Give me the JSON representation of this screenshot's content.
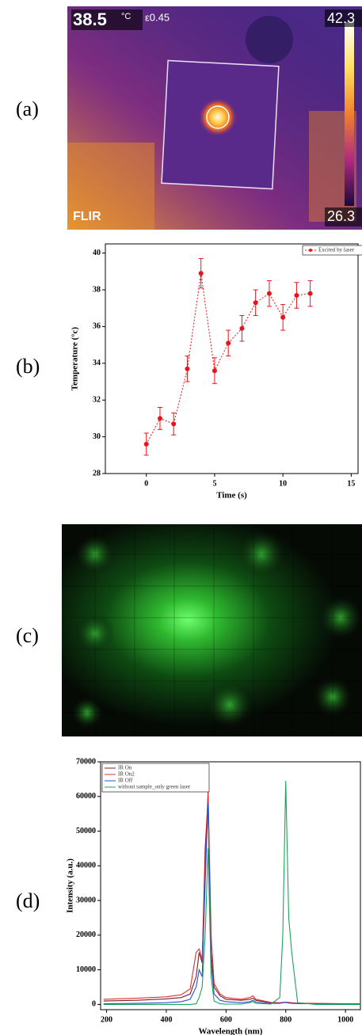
{
  "panel_labels": [
    "(a)",
    "(b)",
    "(c)",
    "(d)"
  ],
  "thermal": {
    "temperature": "38.5",
    "unit": "°C",
    "emissivity": "ε0.45",
    "scale_max": "42.3",
    "scale_min": "26.3",
    "brand": "FLIR"
  },
  "chart_data": [
    {
      "type": "line",
      "x": [
        0,
        1,
        2,
        3,
        4,
        5,
        6,
        7,
        8,
        9,
        10,
        11,
        12
      ],
      "series": [
        {
          "name": "Excited by laser",
          "color": "#e8141b",
          "values": [
            29.6,
            31.0,
            30.7,
            33.7,
            38.9,
            33.6,
            35.1,
            35.9,
            37.3,
            37.8,
            36.5,
            37.7,
            37.8
          ],
          "errors": [
            0.6,
            0.6,
            0.6,
            0.7,
            0.8,
            0.7,
            0.7,
            0.7,
            0.7,
            0.7,
            0.7,
            0.7,
            0.7
          ]
        }
      ],
      "markers": true,
      "line_style": "dotted",
      "xlim": [
        -3,
        15.5
      ],
      "xticks": [
        0,
        5,
        10,
        15
      ],
      "ylim": [
        28,
        40.5
      ],
      "yticks": [
        28,
        30,
        32,
        34,
        36,
        38,
        40
      ],
      "xlabel": "Time (s)",
      "ylabel": "Temperature (°c)",
      "legend": "upper right"
    },
    {
      "type": "line",
      "x": [
        190,
        300,
        400,
        450,
        480,
        500,
        510,
        520,
        530,
        540,
        550,
        560,
        580,
        600,
        650,
        680,
        690,
        700,
        750,
        780,
        790,
        800,
        810,
        820,
        840,
        900,
        1000,
        1050
      ],
      "series": [
        {
          "name": "IR On",
          "color": "#7a1f2b",
          "values": [
            1000,
            1200,
            1600,
            2000,
            3000,
            8000,
            15000,
            12000,
            45000,
            60000,
            15000,
            5000,
            2500,
            1500,
            1200,
            1500,
            1800,
            1200,
            500,
            400,
            500,
            600,
            500,
            400,
            300,
            200,
            150,
            150
          ]
        },
        {
          "name": "IR On2",
          "color": "#e03030",
          "values": [
            1500,
            1800,
            2200,
            2800,
            4500,
            15000,
            16000,
            13000,
            40000,
            62000,
            20000,
            6000,
            3000,
            2000,
            1500,
            2000,
            2500,
            1500,
            600,
            500,
            600,
            700,
            600,
            500,
            400,
            300,
            200,
            200
          ]
        },
        {
          "name": "IR Off",
          "color": "#2a4fd0",
          "values": [
            200,
            300,
            500,
            800,
            1500,
            5000,
            10000,
            8000,
            35000,
            58000,
            12000,
            3000,
            1200,
            800,
            500,
            800,
            1200,
            700,
            300,
            300,
            500,
            600,
            400,
            300,
            250,
            200,
            150,
            150
          ]
        },
        {
          "name": "without sample_only green laser",
          "color": "#1aa35a",
          "values": [
            0,
            0,
            0,
            0,
            0,
            200,
            2000,
            5000,
            20000,
            45000,
            8000,
            1000,
            200,
            100,
            100,
            500,
            800,
            300,
            100,
            2000,
            20000,
            64500,
            25000,
            15000,
            500,
            0,
            0,
            0
          ]
        }
      ],
      "markers": false,
      "line_style": "solid",
      "xlim": [
        180,
        1050
      ],
      "xticks": [
        200,
        400,
        600,
        800,
        1000
      ],
      "ylim": [
        -1500,
        70000
      ],
      "yticks": [
        0,
        10000,
        20000,
        30000,
        40000,
        50000,
        60000,
        70000
      ],
      "xlabel": "Wavelength (nm)",
      "ylabel": "Intensity (a.u.)",
      "legend": "upper left"
    }
  ]
}
